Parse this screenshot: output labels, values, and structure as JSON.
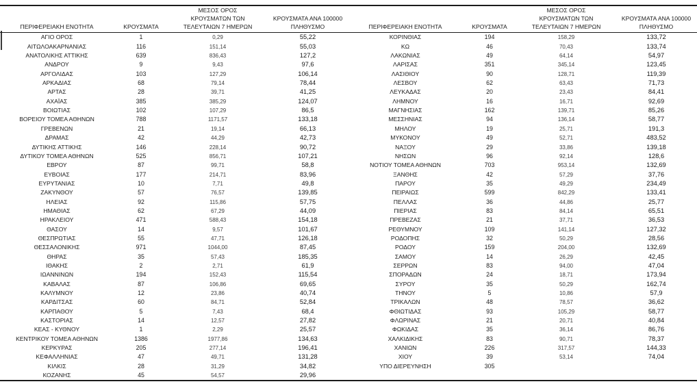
{
  "table": {
    "headers": [
      "ΠΕΡΙΦΕΡΕΙΑΚΗ ΕΝΟΤΗΤΑ",
      "ΚΡΟΥΣΜΑΤΑ",
      "ΜΕΣΟΣ ΟΡΟΣ\nΚΡΟΥΣΜΑΤΩΝ ΤΩΝ\nΤΕΛΕΥΤΑΙΩΝ 7 ΗΜΕΡΩΝ",
      "ΚΡΟΥΣΜΑΤΑ ΑΝΑ 100000\nΠΛΗΘΥΣΜΟ"
    ],
    "left_rows": [
      [
        "ΑΓΙΟ ΟΡΟΣ",
        "1",
        "0,29",
        "55,22"
      ],
      [
        "ΑΙΤΩΛΟΑΚΑΡΝΑΝΙΑΣ",
        "116",
        "151,14",
        "55,03"
      ],
      [
        "ΑΝΑΤΟΛΙΚΗΣ ΑΤΤΙΚΗΣ",
        "639",
        "836,43",
        "127,2"
      ],
      [
        "ΑΝΔΡΟΥ",
        "9",
        "9,43",
        "97,6"
      ],
      [
        "ΑΡΓΟΛΙΔΑΣ",
        "103",
        "127,29",
        "106,14"
      ],
      [
        "ΑΡΚΑΔΙΑΣ",
        "68",
        "79,14",
        "78,44"
      ],
      [
        "ΑΡΤΑΣ",
        "28",
        "39,71",
        "41,25"
      ],
      [
        "ΑΧΑΪΑΣ",
        "385",
        "385,29",
        "124,07"
      ],
      [
        "ΒΟΙΩΤΙΑΣ",
        "102",
        "107,29",
        "86,5"
      ],
      [
        "ΒΟΡΕΙΟΥ ΤΟΜΕΑ ΑΘΗΝΩΝ",
        "788",
        "1171,57",
        "133,18"
      ],
      [
        "ΓΡΕΒΕΝΩΝ",
        "21",
        "19,14",
        "66,13"
      ],
      [
        "ΔΡΑΜΑΣ",
        "42",
        "44,29",
        "42,73"
      ],
      [
        "ΔΥΤΙΚΗΣ ΑΤΤΙΚΗΣ",
        "146",
        "228,14",
        "90,72"
      ],
      [
        "ΔΥΤΙΚΟΥ ΤΟΜΕΑ ΑΘΗΝΩΝ",
        "525",
        "856,71",
        "107,21"
      ],
      [
        "ΕΒΡΟΥ",
        "87",
        "99,71",
        "58,8"
      ],
      [
        "ΕΥΒΟΙΑΣ",
        "177",
        "214,71",
        "83,96"
      ],
      [
        "ΕΥΡΥΤΑΝΙΑΣ",
        "10",
        "7,71",
        "49,8"
      ],
      [
        "ΖΑΚΥΝΘΟΥ",
        "57",
        "76,57",
        "139,85"
      ],
      [
        "ΗΛΕΙΑΣ",
        "92",
        "115,86",
        "57,75"
      ],
      [
        "ΗΜΑΘΙΑΣ",
        "62",
        "67,29",
        "44,09"
      ],
      [
        "ΗΡΑΚΛΕΙΟΥ",
        "471",
        "588,43",
        "154,18"
      ],
      [
        "ΘΑΣΟΥ",
        "14",
        "9,57",
        "101,67"
      ],
      [
        "ΘΕΣΠΡΩΤΙΑΣ",
        "55",
        "47,71",
        "126,18"
      ],
      [
        "ΘΕΣΣΑΛΟΝΙΚΗΣ",
        "971",
        "1044,00",
        "87,45"
      ],
      [
        "ΘΗΡΑΣ",
        "35",
        "57,43",
        "185,35"
      ],
      [
        "ΙΘΑΚΗΣ",
        "2",
        "2,71",
        "61,9"
      ],
      [
        "ΙΩΑΝΝΙΝΩΝ",
        "194",
        "152,43",
        "115,54"
      ],
      [
        "ΚΑΒΑΛΑΣ",
        "87",
        "106,86",
        "69,65"
      ],
      [
        "ΚΑΛΥΜΝΟΥ",
        "12",
        "23,86",
        "40,74"
      ],
      [
        "ΚΑΡΔΙΤΣΑΣ",
        "60",
        "84,71",
        "52,84"
      ],
      [
        "ΚΑΡΠΑΘΟΥ",
        "5",
        "7,43",
        "68,4"
      ],
      [
        "ΚΑΣΤΟΡΙΑΣ",
        "14",
        "12,57",
        "27,82"
      ],
      [
        "ΚΕΑΣ - ΚΥΘΝΟΥ",
        "1",
        "2,29",
        "25,57"
      ],
      [
        "ΚΕΝΤΡΙΚΟΥ ΤΟΜΕΑ ΑΘΗΝΩΝ",
        "1386",
        "1977,86",
        "134,63"
      ],
      [
        "ΚΕΡΚΥΡΑΣ",
        "205",
        "277,14",
        "196,41"
      ],
      [
        "ΚΕΦΑΛΛΗΝΙΑΣ",
        "47",
        "49,71",
        "131,28"
      ],
      [
        "ΚΙΛΚΙΣ",
        "28",
        "31,29",
        "34,82"
      ],
      [
        "ΚΟΖΑΝΗΣ",
        "45",
        "54,57",
        "29,96"
      ]
    ],
    "right_rows": [
      [
        "ΚΟΡΙΝΘΙΑΣ",
        "194",
        "158,29",
        "133,72"
      ],
      [
        "ΚΩ",
        "46",
        "70,43",
        "133,74"
      ],
      [
        "ΛΑΚΩΝΙΑΣ",
        "49",
        "64,14",
        "54,97"
      ],
      [
        "ΛΑΡΙΣΑΣ",
        "351",
        "345,14",
        "123,45"
      ],
      [
        "ΛΑΣΙΘΙΟΥ",
        "90",
        "128,71",
        "119,39"
      ],
      [
        "ΛΕΣΒΟΥ",
        "62",
        "63,43",
        "71,73"
      ],
      [
        "ΛΕΥΚΑΔΑΣ",
        "20",
        "23,43",
        "84,41"
      ],
      [
        "ΛΗΜΝΟΥ",
        "16",
        "16,71",
        "92,69"
      ],
      [
        "ΜΑΓΝΗΣΙΑΣ",
        "162",
        "139,71",
        "85,26"
      ],
      [
        "ΜΕΣΣΗΝΙΑΣ",
        "94",
        "136,14",
        "58,77"
      ],
      [
        "ΜΗΛΟΥ",
        "19",
        "25,71",
        "191,3"
      ],
      [
        "ΜΥΚΟΝΟΥ",
        "49",
        "52,71",
        "483,52"
      ],
      [
        "ΝΑΞΟΥ",
        "29",
        "33,86",
        "139,18"
      ],
      [
        "ΝΗΣΩΝ",
        "96",
        "92,14",
        "128,6"
      ],
      [
        "ΝΟΤΙΟΥ ΤΟΜΕΑ ΑΘΗΝΩΝ",
        "703",
        "953,14",
        "132,69"
      ],
      [
        "ΞΑΝΘΗΣ",
        "42",
        "57,29",
        "37,76"
      ],
      [
        "ΠΑΡΟΥ",
        "35",
        "49,29",
        "234,49"
      ],
      [
        "ΠΕΙΡΑΙΩΣ",
        "599",
        "842,29",
        "133,41"
      ],
      [
        "ΠΕΛΛΑΣ",
        "36",
        "44,86",
        "25,77"
      ],
      [
        "ΠΙΕΡΙΑΣ",
        "83",
        "84,14",
        "65,51"
      ],
      [
        "ΠΡΕΒΕΖΑΣ",
        "21",
        "37,71",
        "36,53"
      ],
      [
        "ΡΕΘΥΜΝΟΥ",
        "109",
        "141,14",
        "127,32"
      ],
      [
        "ΡΟΔΟΠΗΣ",
        "32",
        "50,29",
        "28,56"
      ],
      [
        "ΡΟΔΟΥ",
        "159",
        "204,00",
        "132,69"
      ],
      [
        "ΣΑΜΟΥ",
        "14",
        "26,29",
        "42,45"
      ],
      [
        "ΣΕΡΡΩΝ",
        "83",
        "94,00",
        "47,04"
      ],
      [
        "ΣΠΟΡΑΔΩΝ",
        "24",
        "18,71",
        "173,94"
      ],
      [
        "ΣΥΡΟΥ",
        "35",
        "50,29",
        "162,74"
      ],
      [
        "ΤΗΝΟΥ",
        "5",
        "10,86",
        "57,9"
      ],
      [
        "ΤΡΙΚΑΛΩΝ",
        "48",
        "78,57",
        "36,62"
      ],
      [
        "ΦΘΙΩΤΙΔΑΣ",
        "93",
        "105,29",
        "58,77"
      ],
      [
        "ΦΛΩΡΙΝΑΣ",
        "21",
        "20,71",
        "40,84"
      ],
      [
        "ΦΩΚΙΔΑΣ",
        "35",
        "36,14",
        "86,76"
      ],
      [
        "ΧΑΛΚΙΔΙΚΗΣ",
        "83",
        "90,71",
        "78,37"
      ],
      [
        "ΧΑΝΙΩΝ",
        "226",
        "317,57",
        "144,33"
      ],
      [
        "ΧΙΟΥ",
        "39",
        "53,14",
        "74,04"
      ],
      [
        "ΥΠΟ ΔΙΕΡΕΥΝΗΣΗ",
        "305",
        "",
        ""
      ]
    ]
  }
}
